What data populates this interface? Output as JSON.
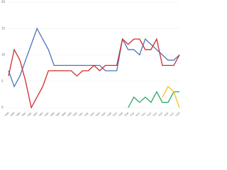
{
  "chart_data": {
    "type": "line",
    "categories": [
      "1988",
      "1989",
      "1990",
      "1991",
      "1992",
      "1993",
      "1994",
      "1995",
      "1996",
      "1997",
      "1998",
      "1999",
      "2000",
      "2001",
      "2002",
      "2003",
      "2004",
      "2005",
      "2006",
      "2007",
      "2008",
      "2009",
      "2010",
      "2011",
      "2012",
      "2013",
      "2014",
      "2015",
      "2016",
      "2017",
      "2018"
    ],
    "series": [
      {
        "name": "Blue",
        "color": "#4e73b8",
        "values": [
          7,
          4,
          6,
          9,
          12,
          15,
          13,
          11,
          8,
          8,
          8,
          8,
          8,
          8,
          8,
          8,
          8,
          7,
          7,
          7,
          13,
          11,
          11,
          10,
          13,
          12,
          11,
          10,
          9,
          9,
          10
        ]
      },
      {
        "name": "Red",
        "color": "#d12b2b",
        "values": [
          6,
          11,
          9,
          5,
          0,
          2,
          4,
          7,
          7,
          7,
          7,
          7,
          6,
          7,
          7,
          8,
          7,
          8,
          8,
          8,
          13,
          12,
          13,
          13,
          11,
          11,
          13,
          8,
          8,
          8,
          10
        ]
      },
      {
        "name": "Green",
        "color": "#2ca86a",
        "values": [
          null,
          null,
          null,
          null,
          null,
          null,
          null,
          null,
          null,
          null,
          null,
          null,
          null,
          null,
          null,
          null,
          null,
          null,
          null,
          null,
          null,
          0,
          2,
          1,
          2,
          1,
          3,
          1,
          1,
          3,
          3
        ]
      },
      {
        "name": "Yellow",
        "color": "#f2c318",
        "values": [
          null,
          null,
          null,
          null,
          null,
          null,
          null,
          null,
          null,
          null,
          null,
          null,
          null,
          null,
          null,
          null,
          null,
          null,
          null,
          null,
          null,
          null,
          null,
          null,
          null,
          null,
          null,
          2,
          4,
          3,
          0
        ]
      }
    ],
    "ylim": [
      0,
      20
    ],
    "yticks": [
      0,
      5,
      10,
      15,
      20
    ],
    "grid": true
  }
}
